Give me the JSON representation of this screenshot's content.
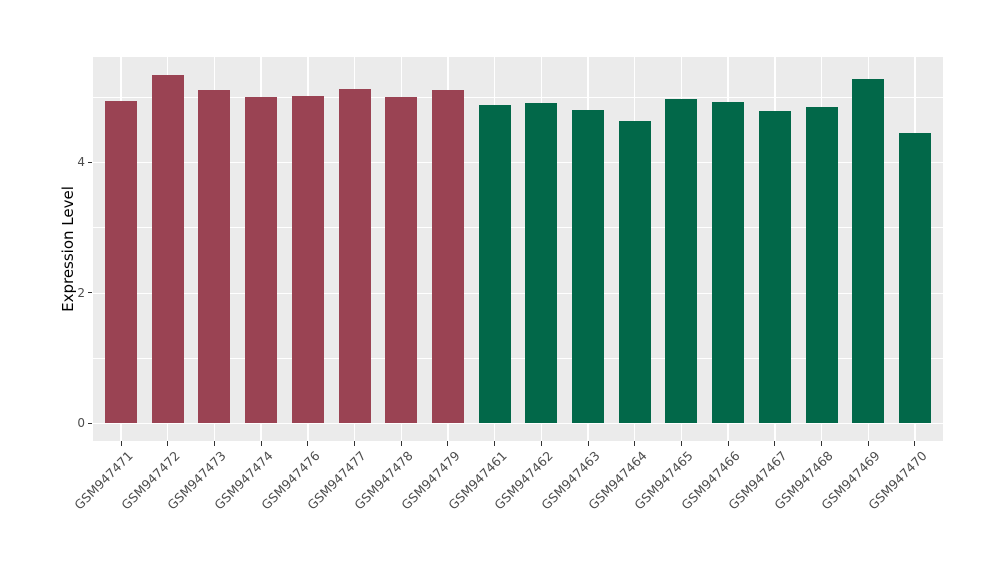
{
  "chart_data": {
    "type": "bar",
    "title": "",
    "xlabel": "",
    "ylabel": "Expression Level",
    "ylim": [
      0,
      5.6
    ],
    "yticks_major": [
      0,
      2,
      4
    ],
    "yticks_minor": [
      1,
      3,
      5
    ],
    "grid": "on",
    "legend": "none",
    "categories": [
      "GSM947471",
      "GSM947472",
      "GSM947473",
      "GSM947474",
      "GSM947476",
      "GSM947477",
      "GSM947478",
      "GSM947479",
      "GSM947461",
      "GSM947462",
      "GSM947463",
      "GSM947464",
      "GSM947465",
      "GSM947466",
      "GSM947467",
      "GSM947468",
      "GSM947469",
      "GSM947470"
    ],
    "values": [
      4.93,
      5.34,
      5.11,
      5.0,
      5.01,
      5.12,
      4.99,
      5.1,
      4.87,
      4.9,
      4.79,
      4.63,
      4.96,
      4.92,
      4.78,
      4.84,
      5.27,
      4.45
    ],
    "bar_groups": [
      "A",
      "A",
      "A",
      "A",
      "A",
      "A",
      "A",
      "A",
      "B",
      "B",
      "B",
      "B",
      "B",
      "B",
      "B",
      "B",
      "B",
      "B"
    ],
    "group_colors": {
      "A": "#9A4353",
      "B": "#026849"
    },
    "panel_background": "#EBEBEB",
    "gridline_color": "#FFFFFF",
    "tick_label_color": "#4D4D4D"
  }
}
